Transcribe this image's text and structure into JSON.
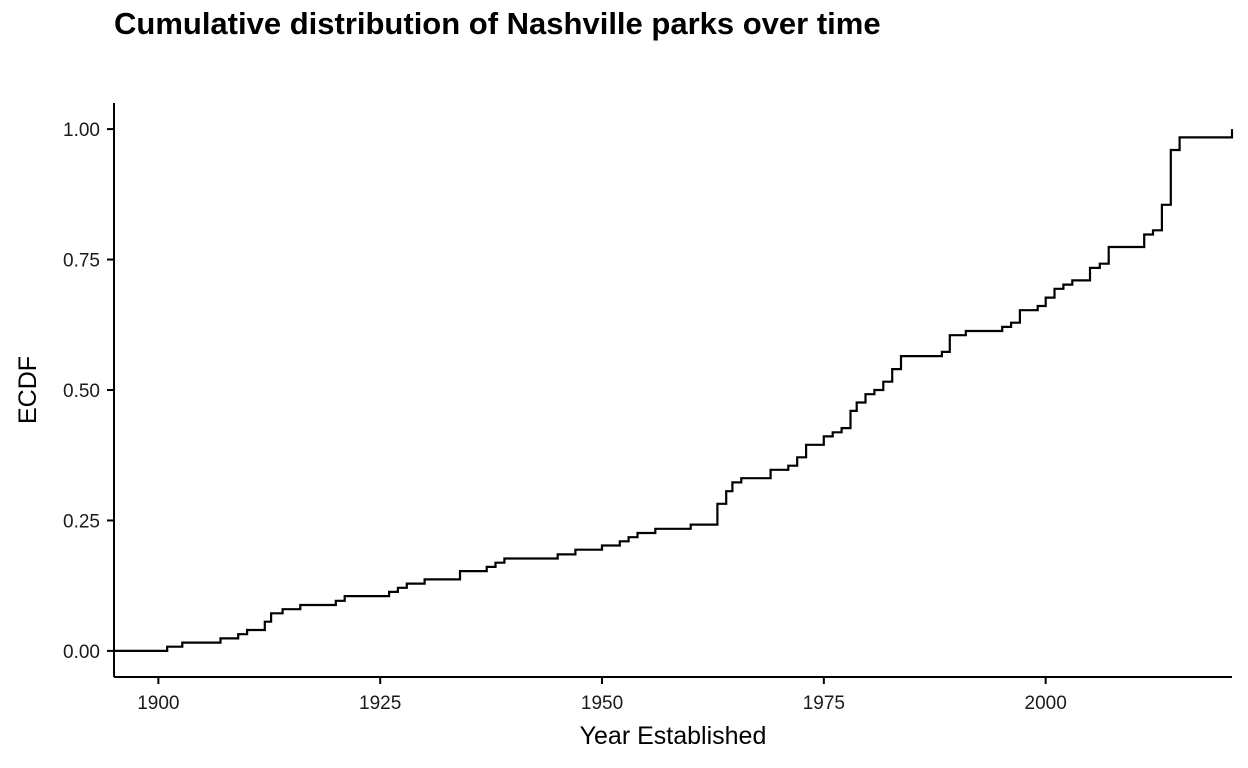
{
  "chart_data": {
    "type": "line",
    "step": true,
    "title": "Cumulative distribution of Nashville parks over time",
    "xlabel": "Year Established",
    "ylabel": "ECDF",
    "xlim": [
      1895,
      2021
    ],
    "ylim": [
      -0.05,
      1.05
    ],
    "xticks": [
      1900,
      1925,
      1950,
      1975,
      2000
    ],
    "yticks": [
      0,
      0.25,
      0.5,
      0.75,
      1
    ],
    "xtick_labels": [
      "1900",
      "1925",
      "1950",
      "1975",
      "2000"
    ],
    "ytick_labels": [
      "0.00",
      "0.25",
      "0.50",
      "0.75",
      "1.00"
    ],
    "grid": false,
    "legend": "none",
    "line_color": "#000000",
    "series": [
      {
        "x": [
          1895,
          1901,
          1902.7,
          1907,
          1909,
          1910,
          1912,
          1912.7,
          1914,
          1916,
          1920,
          1921,
          1926,
          1927,
          1928,
          1930,
          1934,
          1937,
          1938,
          1939,
          1945,
          1947,
          1950,
          1952,
          1953,
          1954,
          1956,
          1960,
          1963,
          1964,
          1964.7,
          1965.7,
          1969,
          1971,
          1972,
          1973,
          1975,
          1976,
          1977,
          1978,
          1978.7,
          1979.7,
          1980.7,
          1981.7,
          1982.7,
          1983.7,
          1988.3,
          1989.2,
          1991,
          1995.1,
          1996.1,
          1997.1,
          1999.1,
          2000,
          2001,
          2002,
          2003,
          2005,
          2006.1,
          2007.1,
          2011.1,
          2012.1,
          2013.1,
          2014.1,
          2015.1,
          2021
        ],
        "y": [
          0,
          0.008,
          0.016,
          0.024,
          0.032,
          0.04,
          0.056,
          0.072,
          0.08,
          0.088,
          0.096,
          0.105,
          0.113,
          0.121,
          0.129,
          0.137,
          0.153,
          0.161,
          0.169,
          0.177,
          0.185,
          0.194,
          0.202,
          0.21,
          0.218,
          0.226,
          0.234,
          0.242,
          0.282,
          0.306,
          0.323,
          0.331,
          0.347,
          0.355,
          0.371,
          0.395,
          0.411,
          0.419,
          0.427,
          0.46,
          0.476,
          0.492,
          0.5,
          0.516,
          0.54,
          0.565,
          0.573,
          0.605,
          0.613,
          0.621,
          0.629,
          0.653,
          0.661,
          0.677,
          0.694,
          0.702,
          0.71,
          0.734,
          0.742,
          0.774,
          0.798,
          0.806,
          0.855,
          0.96,
          0.984,
          1
        ]
      }
    ]
  }
}
